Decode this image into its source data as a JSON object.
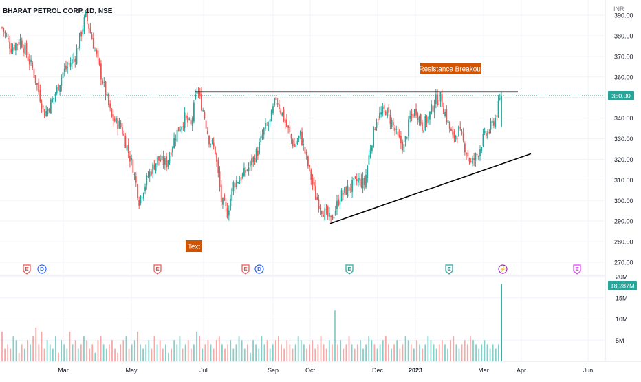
{
  "chart_data": {
    "type": "candlestick",
    "title": "BHARAT PETROL CORP, 1D, NSE",
    "currency": "INR",
    "price_axis": {
      "ticks": [
        390,
        380,
        370,
        360,
        350,
        340,
        330,
        320,
        310,
        300,
        290,
        280,
        270
      ],
      "labels": [
        "390.00",
        "380.00",
        "370.00",
        "360.00",
        "350.00",
        "340.00",
        "330.00",
        "320.00",
        "310.00",
        "300.00",
        "290.00",
        "280.00",
        "270.00"
      ],
      "range": [
        267,
        396
      ]
    },
    "volume_axis": {
      "ticks": [
        20,
        15,
        10,
        5
      ],
      "labels": [
        "20M",
        "15M",
        "10M",
        "5M"
      ],
      "range": [
        0,
        22
      ]
    },
    "x_axis": {
      "labels": [
        "Mar",
        "May",
        "Jul",
        "Sep",
        "Oct",
        "Dec",
        "2023",
        "Mar",
        "Apr",
        "Jun"
      ]
    },
    "last_price": {
      "value": 350.9,
      "label": "350.90"
    },
    "last_volume": {
      "value": 18.287,
      "label": "18.287M"
    },
    "annotations": [
      {
        "text": "Resistance Breakout"
      },
      {
        "text": "Text"
      }
    ],
    "trendlines": [
      {
        "name": "resistance",
        "from_price": 352.8,
        "to_price": 352.8
      },
      {
        "name": "support",
        "from_price": 288.8,
        "to_price": 322.7
      }
    ],
    "event_markers": [
      "E",
      "D",
      "E",
      "E",
      "D",
      "E",
      "E",
      "⚡",
      "E"
    ],
    "price_path": [
      [
        0,
        384
      ],
      [
        6,
        374
      ],
      [
        12,
        378
      ],
      [
        20,
        364
      ],
      [
        28,
        342
      ],
      [
        34,
        350
      ],
      [
        40,
        362
      ],
      [
        48,
        370
      ],
      [
        55,
        390
      ],
      [
        60,
        376
      ],
      [
        66,
        358
      ],
      [
        72,
        340
      ],
      [
        78,
        336
      ],
      [
        82,
        326
      ],
      [
        86,
        316
      ],
      [
        90,
        300
      ],
      [
        96,
        312
      ],
      [
        102,
        320
      ],
      [
        108,
        318
      ],
      [
        114,
        332
      ],
      [
        120,
        340
      ],
      [
        124,
        336
      ],
      [
        128,
        354
      ],
      [
        132,
        344
      ],
      [
        136,
        330
      ],
      [
        140,
        324
      ],
      [
        144,
        300
      ],
      [
        148,
        294
      ],
      [
        152,
        308
      ],
      [
        158,
        312
      ],
      [
        162,
        316
      ],
      [
        168,
        324
      ],
      [
        172,
        334
      ],
      [
        176,
        338
      ],
      [
        180,
        350
      ],
      [
        184,
        342
      ],
      [
        188,
        334
      ],
      [
        192,
        326
      ],
      [
        196,
        332
      ],
      [
        200,
        320
      ],
      [
        206,
        302
      ],
      [
        210,
        296
      ],
      [
        216,
        290
      ],
      [
        222,
        302
      ],
      [
        228,
        306
      ],
      [
        234,
        310
      ],
      [
        238,
        308
      ],
      [
        242,
        326
      ],
      [
        246,
        340
      ],
      [
        252,
        344
      ],
      [
        256,
        338
      ],
      [
        260,
        330
      ],
      [
        264,
        326
      ],
      [
        268,
        340
      ],
      [
        272,
        344
      ],
      [
        276,
        336
      ],
      [
        280,
        340
      ],
      [
        284,
        348
      ],
      [
        288,
        350
      ],
      [
        292,
        340
      ],
      [
        296,
        330
      ],
      [
        300,
        334
      ],
      [
        304,
        326
      ],
      [
        308,
        318
      ],
      [
        312,
        322
      ],
      [
        316,
        330
      ],
      [
        320,
        334
      ],
      [
        324,
        340
      ],
      [
        328,
        351
      ]
    ],
    "volume_series": [
      7,
      3,
      4,
      3,
      6,
      5,
      2,
      4,
      3,
      5,
      4,
      6,
      8,
      4,
      7,
      3,
      5,
      4,
      3,
      6,
      2,
      5,
      4,
      3,
      7,
      4,
      5,
      3,
      4,
      6,
      5,
      3,
      4,
      2,
      5,
      6,
      4,
      3,
      4,
      5,
      3,
      2,
      4,
      5,
      6,
      3,
      4,
      5,
      7,
      4,
      3,
      4,
      5,
      3,
      6,
      4,
      5,
      3,
      4,
      2,
      3,
      5,
      4,
      6,
      3,
      4,
      5,
      3,
      4,
      7,
      6,
      3,
      4,
      5,
      4,
      3,
      5,
      6,
      4,
      3,
      4,
      5,
      3,
      4,
      6,
      5,
      3,
      4,
      2,
      5,
      4,
      3,
      6,
      4,
      5,
      3,
      4,
      5,
      6,
      4,
      3,
      5,
      4,
      3,
      4,
      6,
      5,
      4,
      3,
      4,
      5,
      3,
      4,
      6,
      4,
      3,
      5,
      4,
      12,
      4,
      5,
      3,
      4,
      6,
      4,
      3,
      4,
      5,
      3,
      4,
      6,
      5,
      4,
      3,
      4,
      5,
      6,
      4,
      3,
      4,
      5,
      3,
      4,
      6,
      5,
      4,
      3,
      5,
      4,
      3,
      4,
      6,
      5,
      4,
      3,
      4,
      5,
      4,
      3,
      5,
      6,
      4,
      3,
      4,
      5,
      4,
      6,
      5,
      4,
      3,
      4,
      5,
      4,
      3,
      4,
      3,
      4,
      18.287
    ]
  }
}
